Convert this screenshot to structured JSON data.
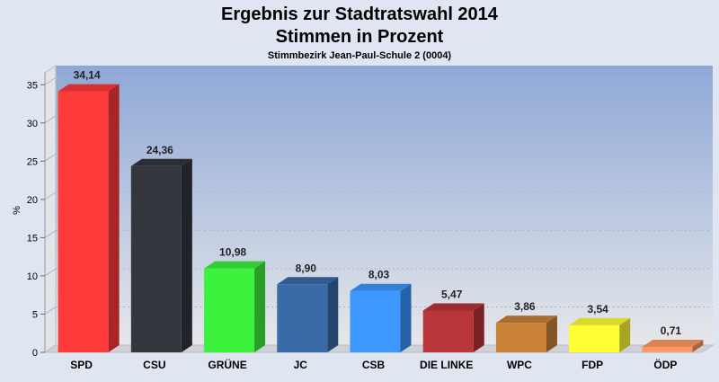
{
  "chart_data": {
    "type": "bar",
    "title": "Ergebnis zur Stadtratswahl 2014",
    "title2": "Stimmen in Prozent",
    "subtitle": "Stimmbezirk Jean-Paul-Schule 2 (0004)",
    "ylabel": "%",
    "ylim": [
      0,
      37.5
    ],
    "yticks": [
      0,
      5,
      10,
      15,
      20,
      25,
      30,
      35
    ],
    "grid": true,
    "legend": "none",
    "categories": [
      "SPD",
      "CSU",
      "GRÜNE",
      "JC",
      "CSB",
      "DIE LINKE",
      "WPC",
      "FDP",
      "ÖDP"
    ],
    "values": [
      34.14,
      24.36,
      10.98,
      8.9,
      8.03,
      5.47,
      3.86,
      3.54,
      0.71
    ],
    "value_labels": [
      "34,14",
      "24,36",
      "10,98",
      "8,90",
      "8,03",
      "5,47",
      "3,86",
      "3,54",
      "0,71"
    ],
    "colors": [
      "#ff3a3a",
      "#33363d",
      "#3df23d",
      "#3a6aa8",
      "#3d97ff",
      "#b8353a",
      "#c98138",
      "#ffff33",
      "#ff9a66"
    ],
    "background": "#dfe6f2",
    "plot_gradient_top": "#8ea8d6",
    "plot_gradient_bottom": "#e6e7ea"
  }
}
